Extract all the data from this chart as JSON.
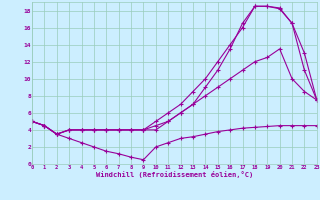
{
  "xlabel": "Windchill (Refroidissement éolien,°C)",
  "bg_color": "#cceeff",
  "line_color": "#990099",
  "grid_color": "#99ccbb",
  "xlim": [
    0,
    23
  ],
  "ylim": [
    0,
    19
  ],
  "xticks": [
    0,
    1,
    2,
    3,
    4,
    5,
    6,
    7,
    8,
    9,
    10,
    11,
    12,
    13,
    14,
    15,
    16,
    17,
    18,
    19,
    20,
    21,
    22,
    23
  ],
  "yticks": [
    0,
    2,
    4,
    6,
    8,
    10,
    12,
    14,
    16,
    18
  ],
  "curves": [
    {
      "x": [
        0,
        1,
        2,
        3,
        4,
        5,
        6,
        7,
        8,
        9,
        10,
        11,
        12,
        13,
        14,
        15,
        16,
        17,
        18,
        19,
        20,
        21,
        22,
        23
      ],
      "y": [
        5,
        4.5,
        3.5,
        4,
        4,
        4,
        4,
        4,
        4,
        4,
        4,
        5,
        6,
        7,
        9,
        11,
        13.5,
        16.5,
        18.5,
        18.5,
        18.3,
        16.5,
        11,
        7.5
      ]
    },
    {
      "x": [
        0,
        1,
        2,
        3,
        4,
        5,
        6,
        7,
        8,
        9,
        10,
        11,
        12,
        13,
        14,
        15,
        16,
        17,
        18,
        19,
        20,
        21,
        22,
        23
      ],
      "y": [
        5,
        4.5,
        3.5,
        4,
        4,
        4,
        4,
        4,
        4,
        4,
        5,
        6,
        7,
        8.5,
        10,
        12,
        14,
        16,
        18.5,
        18.5,
        18.2,
        16.5,
        13,
        7.5
      ]
    },
    {
      "x": [
        0,
        1,
        2,
        3,
        4,
        5,
        6,
        7,
        8,
        9,
        10,
        11,
        12,
        13,
        14,
        15,
        16,
        17,
        18,
        19,
        20,
        21,
        22,
        23
      ],
      "y": [
        5,
        4.5,
        3.5,
        4,
        4,
        4,
        4,
        4,
        4,
        4,
        4.5,
        5,
        6,
        7,
        8,
        9,
        10,
        11,
        12,
        12.5,
        13.5,
        10,
        8.5,
        7.5
      ]
    },
    {
      "x": [
        0,
        1,
        2,
        3,
        4,
        5,
        6,
        7,
        8,
        9,
        10,
        11,
        12,
        13,
        14,
        15,
        16,
        17,
        18,
        19,
        20,
        21,
        22,
        23
      ],
      "y": [
        5,
        4.5,
        3.5,
        3,
        2.5,
        2,
        1.5,
        1.2,
        0.8,
        0.5,
        2,
        2.5,
        3,
        3.2,
        3.5,
        3.8,
        4,
        4.2,
        4.3,
        4.4,
        4.5,
        4.5,
        4.5,
        4.5
      ]
    }
  ]
}
